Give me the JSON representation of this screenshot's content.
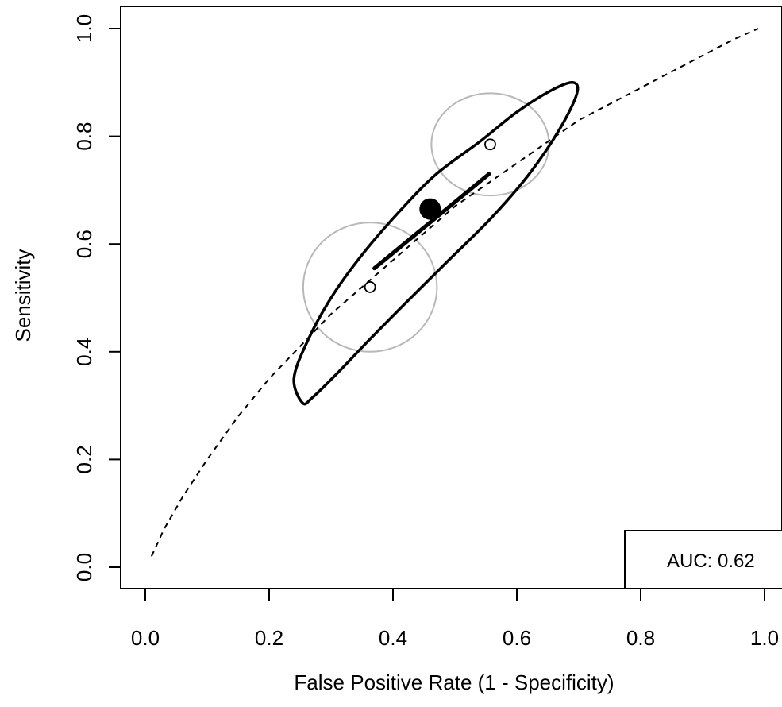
{
  "chart_data": {
    "type": "sroc",
    "xlabel": "False Positive Rate (1 - Specificity)",
    "ylabel": "Sensitivity",
    "xlim": [
      0.0,
      1.0
    ],
    "ylim": [
      0.0,
      1.0
    ],
    "xticks": [
      "0.0",
      "0.2",
      "0.4",
      "0.6",
      "0.8",
      "1.0"
    ],
    "yticks": [
      "0.0",
      "0.2",
      "0.4",
      "0.6",
      "0.8",
      "1.0"
    ],
    "grid": false,
    "auc_label": "AUC: 0.62",
    "auc_box_position": "bottom-right",
    "sroc_curve": {
      "style": "dashed",
      "x": [
        0.01,
        0.03,
        0.06,
        0.1,
        0.15,
        0.2,
        0.25,
        0.3,
        0.35,
        0.4,
        0.45,
        0.5,
        0.55,
        0.6,
        0.65,
        0.7,
        0.75,
        0.8,
        0.85,
        0.9,
        0.95,
        0.99
      ],
      "y": [
        0.02,
        0.07,
        0.13,
        0.2,
        0.28,
        0.35,
        0.41,
        0.47,
        0.52,
        0.57,
        0.62,
        0.67,
        0.71,
        0.75,
        0.79,
        0.83,
        0.86,
        0.89,
        0.92,
        0.95,
        0.98,
        1.0
      ]
    },
    "summary_point": {
      "x": 0.46,
      "y": 0.665
    },
    "studies": [
      {
        "x": 0.363,
        "y": 0.52,
        "ellipse": {
          "rx": 0.108,
          "ry": 0.12
        }
      },
      {
        "x": 0.557,
        "y": 0.785,
        "ellipse": {
          "rx": 0.095,
          "ry": 0.095
        }
      }
    ],
    "summary_segment": {
      "x1": 0.37,
      "y1": 0.555,
      "x2": 0.555,
      "y2": 0.73
    },
    "confidence_region": {
      "x": [
        0.254,
        0.24,
        0.262,
        0.3,
        0.35,
        0.41,
        0.47,
        0.54,
        0.6,
        0.655,
        0.69,
        0.697,
        0.67,
        0.62,
        0.56,
        0.49,
        0.42,
        0.36,
        0.31,
        0.27,
        0.254
      ],
      "y": [
        0.305,
        0.35,
        0.42,
        0.5,
        0.58,
        0.66,
        0.73,
        0.79,
        0.845,
        0.885,
        0.9,
        0.88,
        0.815,
        0.73,
        0.65,
        0.57,
        0.49,
        0.42,
        0.36,
        0.315,
        0.305
      ]
    }
  }
}
